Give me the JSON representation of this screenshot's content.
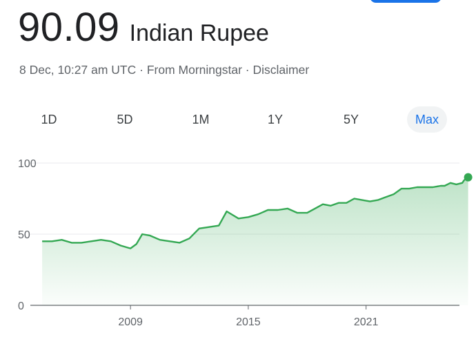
{
  "header": {
    "price": "90.09",
    "currency_name": "Indian Rupee"
  },
  "meta": {
    "timestamp": "8 Dec, 10:27 am UTC",
    "separator": "·",
    "source": "From Morningstar",
    "disclaimer": "Disclaimer"
  },
  "tabs": [
    {
      "label": "1D",
      "active": false
    },
    {
      "label": "5D",
      "active": false
    },
    {
      "label": "1M",
      "active": false
    },
    {
      "label": "1Y",
      "active": false
    },
    {
      "label": "5Y",
      "active": false
    },
    {
      "label": "Max",
      "active": true
    }
  ],
  "colors": {
    "line": "#34a853",
    "fill_top": "#34a853",
    "active_tab": "#1a73e8",
    "grid": "#e8eaed"
  },
  "chart_data": {
    "type": "area",
    "x_ticks": [
      "2009",
      "2015",
      "2021"
    ],
    "x_tick_values": [
      2009,
      2015,
      2021
    ],
    "y_ticks": [
      "0",
      "50",
      "100"
    ],
    "y_tick_values": [
      0,
      50,
      100
    ],
    "xlim": [
      2003.9,
      2026.6
    ],
    "ylim": [
      0,
      100
    ],
    "grid": true,
    "last_point_marker": true,
    "x": [
      2004.5,
      2005.0,
      2005.5,
      2006.0,
      2006.5,
      2007.0,
      2007.5,
      2008.0,
      2008.5,
      2009.0,
      2009.3,
      2009.6,
      2010.0,
      2010.5,
      2011.0,
      2011.5,
      2012.0,
      2012.5,
      2013.0,
      2013.5,
      2013.9,
      2014.5,
      2015.0,
      2015.5,
      2016.0,
      2016.5,
      2017.0,
      2017.5,
      2018.0,
      2018.4,
      2018.8,
      2019.2,
      2019.6,
      2020.0,
      2020.4,
      2020.8,
      2021.2,
      2021.6,
      2022.0,
      2022.4,
      2022.8,
      2023.2,
      2023.6,
      2024.0,
      2024.4,
      2024.8,
      2025.0,
      2025.3,
      2025.6,
      2025.9,
      2026.0,
      2026.2
    ],
    "values": [
      45,
      45,
      46,
      44,
      44,
      45,
      46,
      45,
      42,
      40,
      43,
      50,
      49,
      46,
      45,
      44,
      47,
      54,
      55,
      56,
      66,
      61,
      62,
      64,
      67,
      67,
      68,
      65,
      65,
      68,
      71,
      70,
      72,
      72,
      75,
      74,
      73,
      74,
      76,
      78,
      82,
      82,
      83,
      83,
      83,
      84,
      84,
      86,
      85,
      86,
      88,
      90
    ]
  }
}
